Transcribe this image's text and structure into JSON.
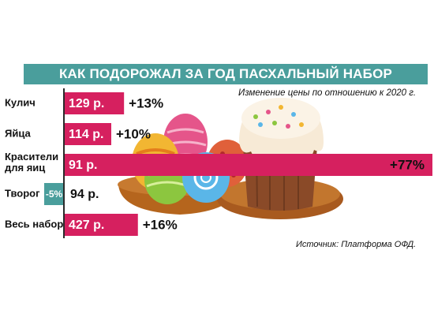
{
  "chart_data": {
    "type": "bar",
    "title": "КАК ПОДОРОЖАЛ ЗА ГОД ПАСХАЛЬНЫЙ НАБОР",
    "subtitle": "Изменение цены по отношению к 2020 г.",
    "source": "Источник: Платформа ОФД.",
    "categories": [
      [
        "Кулич"
      ],
      [
        "Яйца"
      ],
      [
        "Красители",
        "для яиц"
      ],
      [
        "Творог"
      ],
      [
        "Весь набор"
      ]
    ],
    "prices": [
      "129 р.",
      "114 р.",
      "91 р.",
      "94 р.",
      "427 р."
    ],
    "change_percent": [
      13,
      10,
      77,
      -5,
      16
    ],
    "change_labels": [
      "+13%",
      "+10%",
      "+77%",
      "-5%",
      "+16%"
    ],
    "colors": {
      "increase": "#d6205f",
      "decrease": "#4a9e9c",
      "title_band": "#4a9e9c"
    }
  },
  "illustration": {
    "description_icon": "easter-cake-and-eggs-icon"
  }
}
